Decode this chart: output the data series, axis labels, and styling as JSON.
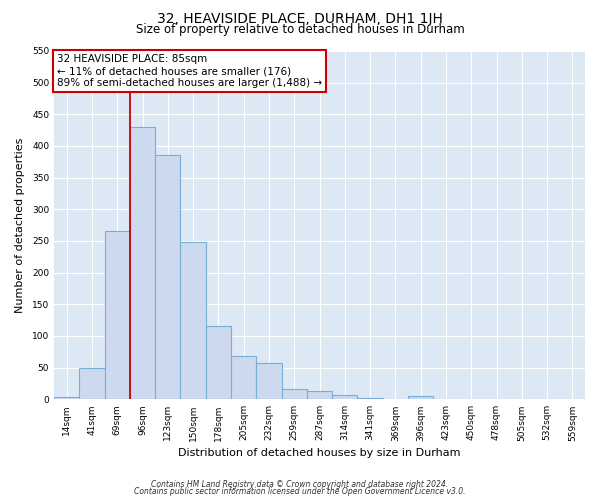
{
  "title": "32, HEAVISIDE PLACE, DURHAM, DH1 1JH",
  "subtitle": "Size of property relative to detached houses in Durham",
  "xlabel": "Distribution of detached houses by size in Durham",
  "ylabel": "Number of detached properties",
  "bar_labels": [
    "14sqm",
    "41sqm",
    "69sqm",
    "96sqm",
    "123sqm",
    "150sqm",
    "178sqm",
    "205sqm",
    "232sqm",
    "259sqm",
    "287sqm",
    "314sqm",
    "341sqm",
    "369sqm",
    "396sqm",
    "423sqm",
    "450sqm",
    "478sqm",
    "505sqm",
    "532sqm",
    "559sqm"
  ],
  "bar_values": [
    3,
    50,
    265,
    430,
    385,
    248,
    115,
    68,
    58,
    17,
    13,
    7,
    2,
    0,
    5,
    0,
    0,
    1,
    0,
    0,
    1
  ],
  "bar_color": "#ccd9ee",
  "bar_edge_color": "#7aaed6",
  "vline_x_index": 3,
  "vline_color": "#cc0000",
  "annotation_line1": "32 HEAVISIDE PLACE: 85sqm",
  "annotation_line2": "← 11% of detached houses are smaller (176)",
  "annotation_line3": "89% of semi-detached houses are larger (1,488) →",
  "annotation_box_edge_color": "#cc0000",
  "annotation_box_face_color": "#ffffff",
  "ylim": [
    0,
    550
  ],
  "yticks": [
    0,
    50,
    100,
    150,
    200,
    250,
    300,
    350,
    400,
    450,
    500,
    550
  ],
  "footer_line1": "Contains HM Land Registry data © Crown copyright and database right 2024.",
  "footer_line2": "Contains public sector information licensed under the Open Government Licence v3.0.",
  "fig_bg_color": "#ffffff",
  "plot_bg_color": "#dde8f5",
  "grid_color": "#ffffff",
  "title_fontsize": 10,
  "subtitle_fontsize": 8.5,
  "tick_fontsize": 6.5,
  "label_fontsize": 8,
  "annotation_fontsize": 7.5,
  "footer_fontsize": 5.5
}
